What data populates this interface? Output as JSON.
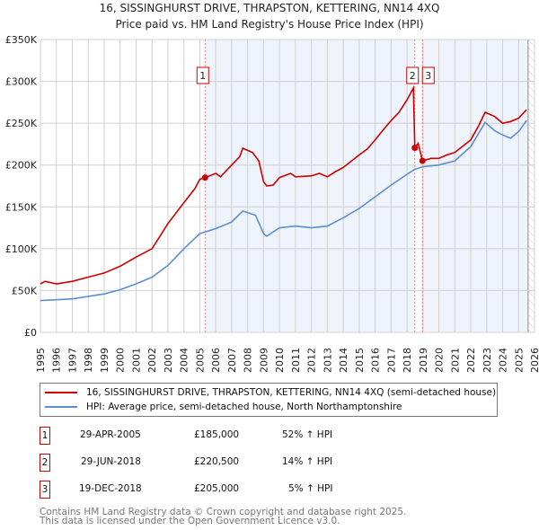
{
  "header": {
    "title_line1": "16, SISSINGHURST DRIVE, THRAPSTON, KETTERING, NN14 4XQ",
    "title_line2": "Price paid vs. HM Land Registry's House Price Index (HPI)"
  },
  "chart_data": {
    "type": "line",
    "title": "Price paid vs. HM Land Registry's House Price Index (HPI)",
    "xlim": [
      1995,
      2026
    ],
    "ylim": [
      0,
      350000
    ],
    "x_ticks": [
      "1995",
      "1996",
      "1997",
      "1998",
      "1999",
      "2000",
      "2001",
      "2002",
      "2003",
      "2004",
      "2005",
      "2006",
      "2007",
      "2008",
      "2009",
      "2010",
      "2011",
      "2012",
      "2013",
      "2014",
      "2015",
      "2016",
      "2017",
      "2018",
      "2019",
      "2020",
      "2021",
      "2022",
      "2023",
      "2024",
      "2025",
      "2026"
    ],
    "y_ticks": [
      {
        "value": 0,
        "label": "£0"
      },
      {
        "value": 50000,
        "label": "£50K"
      },
      {
        "value": 100000,
        "label": "£100K"
      },
      {
        "value": 150000,
        "label": "£150K"
      },
      {
        "value": 200000,
        "label": "£200K"
      },
      {
        "value": 250000,
        "label": "£250K"
      },
      {
        "value": 300000,
        "label": "£300K"
      },
      {
        "value": 350000,
        "label": "£350K"
      }
    ],
    "grid": true,
    "shaded_from": 2005.33,
    "data_end": 2025.6,
    "series": [
      {
        "name": "16, SISSINGHURST DRIVE, THRAPSTON, KETTERING, NN14 4XQ (semi-detached house)",
        "color": "#cc0000",
        "x": [
          1995,
          1995.3,
          1996,
          1997,
          1998,
          1999,
          2000,
          2001,
          2002,
          2002.5,
          2003,
          2004,
          2004.7,
          2005,
          2005.33,
          2006,
          2006.3,
          2007,
          2007.5,
          2007.7,
          2008.3,
          2008.7,
          2009.0,
          2009.2,
          2009.6,
          2010,
          2010.7,
          2011,
          2012,
          2012.5,
          2013,
          2013.5,
          2014,
          2015,
          2015.5,
          2016,
          2016.5,
          2017,
          2017.5,
          2018,
          2018.4,
          2018.49,
          2018.7,
          2018.97,
          2019.5,
          2020,
          2020.5,
          2021,
          2022,
          2022.5,
          2022.9,
          2023.5,
          2024,
          2024.5,
          2025,
          2025.5
        ],
        "y": [
          58000,
          61000,
          58000,
          61000,
          66000,
          71000,
          79000,
          90000,
          100000,
          115000,
          130000,
          155000,
          172000,
          183000,
          185000,
          190000,
          186000,
          200000,
          210000,
          220000,
          215000,
          205000,
          180000,
          175000,
          176000,
          185000,
          190000,
          186000,
          187000,
          190000,
          186000,
          192000,
          197000,
          212000,
          219000,
          230000,
          242000,
          253000,
          263000,
          278000,
          292000,
          220500,
          226000,
          205000,
          208000,
          208000,
          212000,
          215000,
          230000,
          247000,
          263000,
          258000,
          250000,
          252000,
          256000,
          266000
        ]
      },
      {
        "name": "HPI: Average price, semi-detached house, North Northamptonshire",
        "color": "#5b8fd0",
        "x": [
          1995,
          1996,
          1997,
          1998,
          1999,
          2000,
          2001,
          2002,
          2003,
          2004,
          2005,
          2006,
          2007,
          2007.7,
          2008.5,
          2009.0,
          2009.2,
          2010,
          2011,
          2012,
          2013,
          2014,
          2015,
          2016,
          2017,
          2018,
          2018.5,
          2019,
          2020,
          2021,
          2022,
          2022.9,
          2023.5,
          2024,
          2024.5,
          2025,
          2025.5
        ],
        "y": [
          38000,
          39000,
          40000,
          43000,
          46000,
          51000,
          58000,
          66000,
          80000,
          100000,
          118000,
          124000,
          132000,
          145000,
          140000,
          118000,
          115000,
          125000,
          127000,
          125000,
          127000,
          137000,
          148000,
          162000,
          176000,
          189000,
          195000,
          198000,
          200000,
          205000,
          222000,
          251000,
          241000,
          236000,
          232000,
          240000,
          253000
        ]
      }
    ],
    "sales": [
      {
        "label": "1",
        "x": 2005.33,
        "y": 185000,
        "date": "29-APR-2005",
        "price": "£185,000",
        "hpi": "52% ↑ HPI"
      },
      {
        "label": "2",
        "x": 2018.49,
        "y": 220500,
        "date": "29-JUN-2018",
        "price": "£220,500",
        "hpi": "14% ↑ HPI"
      },
      {
        "label": "3",
        "x": 2018.97,
        "y": 205000,
        "date": "19-DEC-2018",
        "price": "£205,000",
        "hpi": "5% ↑ HPI"
      }
    ]
  },
  "legend": {
    "items": [
      {
        "label": "16, SISSINGHURST DRIVE, THRAPSTON, KETTERING, NN14 4XQ (semi-detached house)",
        "color": "#cc0000"
      },
      {
        "label": "HPI: Average price, semi-detached house, North Northamptonshire",
        "color": "#5b8fd0"
      }
    ]
  },
  "footer": {
    "line1": "Contains HM Land Registry data © Crown copyright and database right 2025.",
    "line2": "This data is licensed under the Open Government Licence v3.0."
  }
}
